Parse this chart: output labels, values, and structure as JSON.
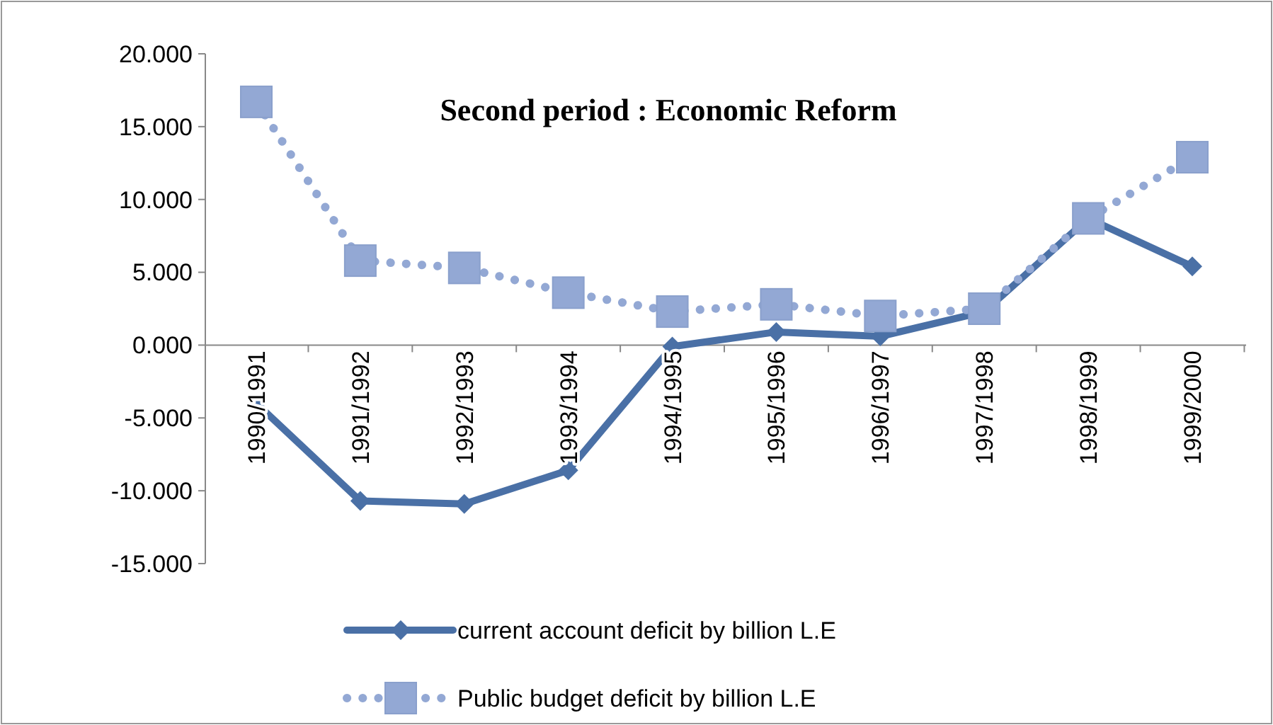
{
  "chart_data": {
    "type": "line",
    "title": "Second period :  Economic Reform",
    "categories": [
      "1990/1991",
      "1991/1992",
      "1992/1993",
      "1993/1994",
      "1994/1995",
      "1995/1996",
      "1996/1997",
      "1997/1998",
      "1998/1999",
      "1999/2000"
    ],
    "series": [
      {
        "name": "current account deficit by billion L.E",
        "color": "#4a70a6",
        "marker": "diamond",
        "line_style": "solid",
        "values": [
          -4.0,
          -10.7,
          -10.9,
          -8.6,
          -0.1,
          0.9,
          0.6,
          2.3,
          8.7,
          5.4
        ]
      },
      {
        "name": "Public budget deficit by billion L.E",
        "color": "#93a8d4",
        "marker": "square",
        "line_style": "dotted",
        "values": [
          16.7,
          5.8,
          5.3,
          3.6,
          2.3,
          2.8,
          2.0,
          2.5,
          8.7,
          12.9
        ]
      }
    ],
    "ylim": [
      -15,
      20
    ],
    "yticks": [
      {
        "value": -15,
        "label": "-15.000"
      },
      {
        "value": -10,
        "label": "-10.000"
      },
      {
        "value": -5,
        "label": "-5.000"
      },
      {
        "value": 0,
        "label": "0.000"
      },
      {
        "value": 5,
        "label": "5.000"
      },
      {
        "value": 10,
        "label": "10.000"
      },
      {
        "value": 15,
        "label": "15.000"
      },
      {
        "value": 20,
        "label": "20.000"
      }
    ],
    "grid": false,
    "legend": "bottom"
  }
}
